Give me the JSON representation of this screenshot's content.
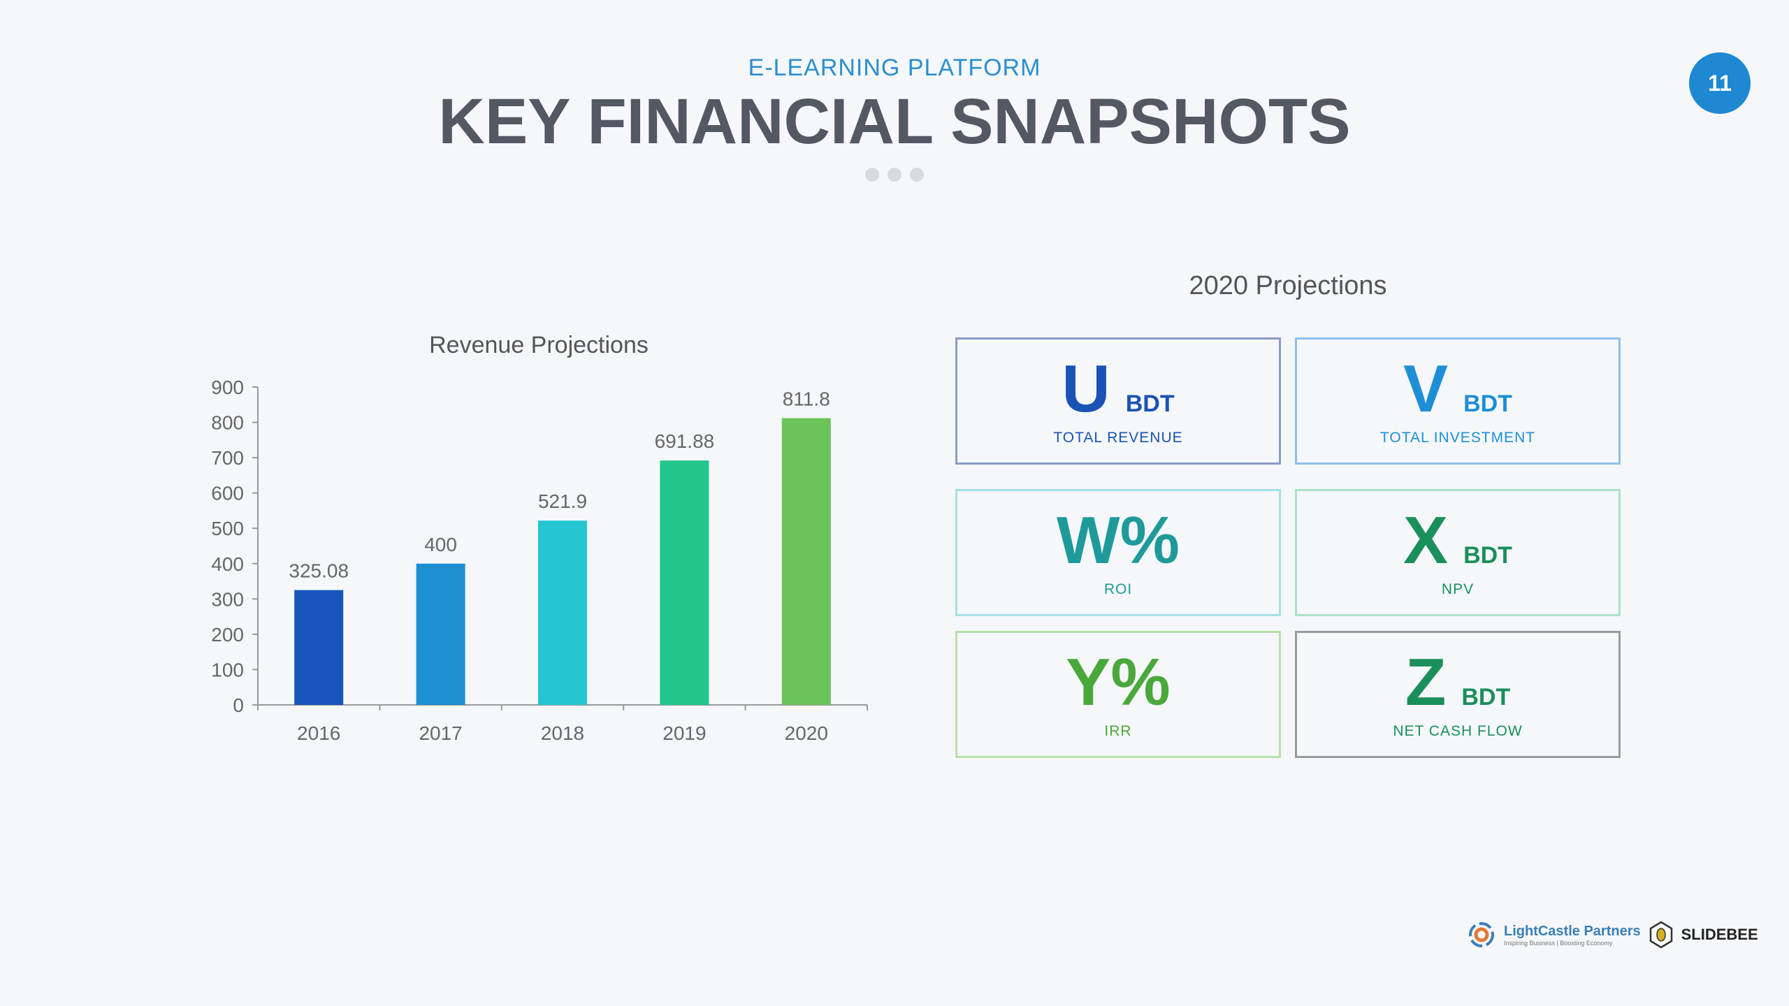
{
  "header": {
    "subtitle": "E-LEARNING PLATFORM",
    "title": "KEY FINANCIAL SNAPSHOTS",
    "page_number": "11"
  },
  "projections": {
    "title": "2020 Projections",
    "cards": [
      {
        "value": "U",
        "unit": "BDT",
        "label": "TOTAL REVENUE",
        "color": "#1a53b5",
        "border": "#8c9ac4"
      },
      {
        "value": "V",
        "unit": "BDT",
        "label": "TOTAL INVESTMENT",
        "color": "#1e8ed6",
        "border": "#8cc0ec"
      },
      {
        "value": "W%",
        "unit": "",
        "label": "ROI",
        "color": "#1f9a9a",
        "border": "#a6e0e6"
      },
      {
        "value": "X",
        "unit": "BDT",
        "label": "NPV",
        "color": "#1a8f5a",
        "border": "#a8e2c8"
      },
      {
        "value": "Y%",
        "unit": "",
        "label": "IRR",
        "color": "#4aa83a",
        "border": "#b8e0a8"
      },
      {
        "value": "Z",
        "unit": "BDT",
        "label": "NET CASH FLOW",
        "color": "#1a8f5a",
        "border": "#9a9a9a"
      }
    ]
  },
  "footer": {
    "logo1": "LightCastle Partners",
    "logo1_tagline": "Inspiring Business | Boosting Economy",
    "logo2": "SLIDEBEE"
  },
  "chart_data": {
    "type": "bar",
    "title": "Revenue Projections",
    "categories": [
      "2016",
      "2017",
      "2018",
      "2019",
      "2020"
    ],
    "values": [
      325.08,
      400,
      521.9,
      691.88,
      811.8
    ],
    "data_labels": [
      "325.08",
      "400",
      "521.9",
      "691.88",
      "811.8"
    ],
    "colors": [
      "#1756b8",
      "#1e90d2",
      "#26c6d0",
      "#22c58a",
      "#6cc35a"
    ],
    "ylim": [
      0,
      900
    ],
    "yticks": [
      0,
      100,
      200,
      300,
      400,
      500,
      600,
      700,
      800,
      900
    ],
    "grid": false
  }
}
